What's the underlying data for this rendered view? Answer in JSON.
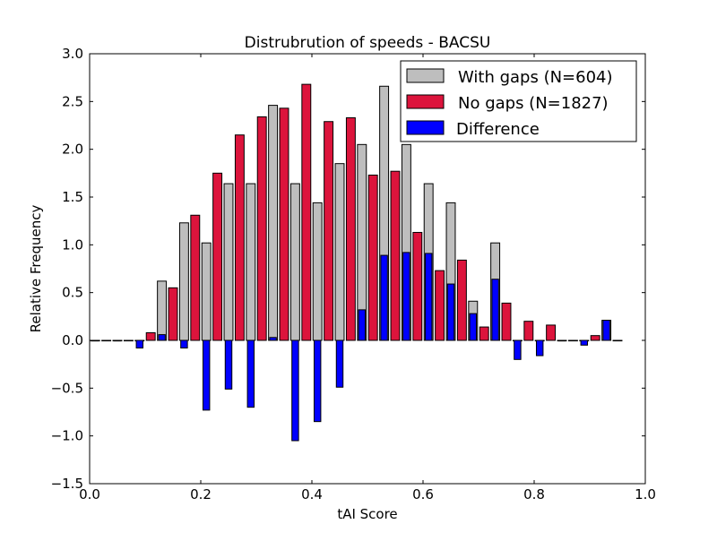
{
  "chart_data": {
    "type": "bar",
    "title": "Distrubrution of speeds - BACSU",
    "xlabel": "tAI Score",
    "ylabel": "Relative Frequency",
    "xlim": [
      0.0,
      1.0
    ],
    "ylim": [
      -1.5,
      3.0
    ],
    "x_ticks": [
      0.0,
      0.2,
      0.4,
      0.6,
      0.8,
      1.0
    ],
    "x_tick_labels": [
      "0.0",
      "0.2",
      "0.4",
      "0.6",
      "0.8",
      "1.0"
    ],
    "y_ticks": [
      -1.5,
      -1.0,
      -0.5,
      0.0,
      0.5,
      1.0,
      1.5,
      2.0,
      2.5,
      3.0
    ],
    "y_tick_labels": [
      "−1.5",
      "−1.0",
      "−0.5",
      "0.0",
      "0.5",
      "1.0",
      "1.5",
      "2.0",
      "2.5",
      "3.0"
    ],
    "grid": false,
    "legend_position": "top-right",
    "bin_width": 0.04,
    "bin_starts": [
      0.0,
      0.04,
      0.08,
      0.12,
      0.16,
      0.2,
      0.24,
      0.28,
      0.32,
      0.36,
      0.4,
      0.44,
      0.48,
      0.52,
      0.56,
      0.6,
      0.64,
      0.68,
      0.72,
      0.76,
      0.8,
      0.84,
      0.88,
      0.92
    ],
    "series": [
      {
        "name": "With gaps (N=604)",
        "color": "#bebebe",
        "values": [
          0,
          0,
          0,
          0.62,
          1.23,
          1.02,
          1.64,
          1.64,
          2.46,
          1.64,
          1.44,
          1.85,
          2.05,
          2.66,
          2.05,
          1.64,
          1.44,
          0.41,
          1.02,
          0,
          0,
          0,
          0,
          0.21
        ]
      },
      {
        "name": "No gaps (N=1827)",
        "color": "#dc143c",
        "values": [
          0,
          0,
          0.08,
          0.55,
          1.31,
          1.75,
          2.15,
          2.34,
          2.43,
          2.68,
          2.29,
          2.33,
          1.73,
          1.77,
          1.13,
          0.73,
          0.84,
          0.14,
          0.39,
          0.2,
          0.16,
          0,
          0.05,
          0
        ]
      },
      {
        "name": "Difference",
        "color": "#0000ff",
        "values": [
          0,
          0,
          -0.08,
          0.06,
          -0.08,
          -0.73,
          -0.51,
          -0.7,
          0.03,
          -1.05,
          -0.85,
          -0.49,
          0.32,
          0.89,
          0.92,
          0.91,
          0.59,
          0.28,
          0.64,
          -0.2,
          -0.16,
          0,
          -0.05,
          0.21
        ]
      }
    ]
  }
}
